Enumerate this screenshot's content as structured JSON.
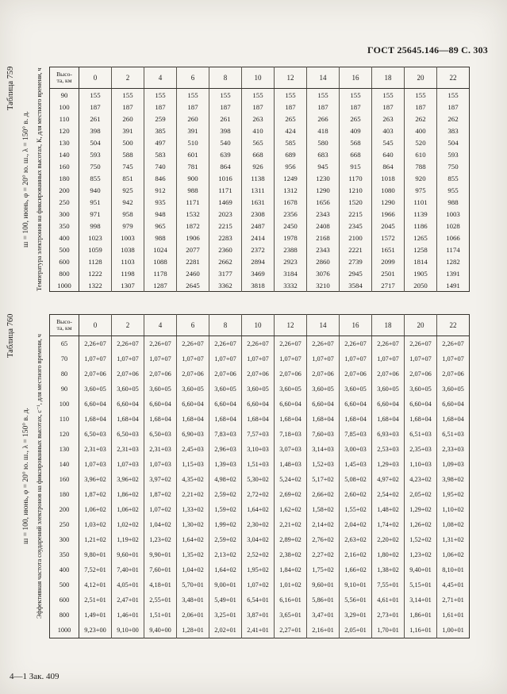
{
  "page": {
    "header_right": "ГОСТ 25645.146—89 С. 303",
    "footer_left": "4—1 Зак. 409"
  },
  "tables": [
    {
      "caption": "Таблица 759",
      "condition": "ш = 100, июнь, φ = 20° ю. ш., λ = 150° в. д.",
      "title": "Температура электронов на фиксированных высотах, К, для местного времени, ч",
      "height_header_lines": [
        "Высо-",
        "та, км"
      ],
      "hours": [
        "0",
        "2",
        "4",
        "6",
        "8",
        "10",
        "12",
        "14",
        "16",
        "18",
        "20",
        "22"
      ],
      "rows": [
        {
          "height": "90",
          "values": [
            "155",
            "155",
            "155",
            "155",
            "155",
            "155",
            "155",
            "155",
            "155",
            "155",
            "155",
            "155"
          ]
        },
        {
          "height": "100",
          "values": [
            "187",
            "187",
            "187",
            "187",
            "187",
            "187",
            "187",
            "187",
            "187",
            "187",
            "187",
            "187"
          ]
        },
        {
          "height": "110",
          "values": [
            "261",
            "260",
            "259",
            "260",
            "261",
            "263",
            "265",
            "266",
            "265",
            "263",
            "262",
            "262"
          ]
        },
        {
          "height": "120",
          "values": [
            "398",
            "391",
            "385",
            "391",
            "398",
            "410",
            "424",
            "418",
            "409",
            "403",
            "400",
            "383"
          ]
        },
        {
          "height": "130",
          "values": [
            "504",
            "500",
            "497",
            "510",
            "540",
            "565",
            "585",
            "580",
            "568",
            "545",
            "520",
            "504"
          ]
        },
        {
          "height": "140",
          "values": [
            "593",
            "588",
            "583",
            "601",
            "639",
            "668",
            "689",
            "683",
            "668",
            "640",
            "610",
            "593"
          ]
        },
        {
          "height": "160",
          "values": [
            "750",
            "745",
            "740",
            "781",
            "864",
            "926",
            "956",
            "945",
            "915",
            "864",
            "788",
            "750"
          ]
        },
        {
          "height": "180",
          "values": [
            "855",
            "851",
            "846",
            "900",
            "1016",
            "1138",
            "1249",
            "1230",
            "1170",
            "1018",
            "920",
            "855"
          ]
        },
        {
          "height": "200",
          "values": [
            "940",
            "925",
            "912",
            "988",
            "1171",
            "1311",
            "1312",
            "1290",
            "1210",
            "1080",
            "975",
            "955"
          ]
        },
        {
          "height": "250",
          "values": [
            "951",
            "942",
            "935",
            "1171",
            "1469",
            "1631",
            "1678",
            "1656",
            "1520",
            "1290",
            "1101",
            "988"
          ]
        },
        {
          "height": "300",
          "values": [
            "971",
            "958",
            "948",
            "1532",
            "2023",
            "2308",
            "2356",
            "2343",
            "2215",
            "1966",
            "1139",
            "1003"
          ]
        },
        {
          "height": "350",
          "values": [
            "998",
            "979",
            "965",
            "1872",
            "2215",
            "2487",
            "2450",
            "2408",
            "2345",
            "2045",
            "1186",
            "1028"
          ]
        },
        {
          "height": "400",
          "values": [
            "1023",
            "1003",
            "988",
            "1906",
            "2283",
            "2414",
            "1978",
            "2168",
            "2100",
            "1572",
            "1265",
            "1066"
          ]
        },
        {
          "height": "500",
          "values": [
            "1059",
            "1038",
            "1024",
            "2077",
            "2360",
            "2372",
            "2388",
            "2343",
            "2221",
            "1651",
            "1258",
            "1174"
          ]
        },
        {
          "height": "600",
          "values": [
            "1128",
            "1103",
            "1088",
            "2281",
            "2662",
            "2894",
            "2923",
            "2860",
            "2739",
            "2099",
            "1814",
            "1282"
          ]
        },
        {
          "height": "800",
          "values": [
            "1222",
            "1198",
            "1178",
            "2460",
            "3177",
            "3469",
            "3184",
            "3076",
            "2945",
            "2501",
            "1905",
            "1391"
          ]
        },
        {
          "height": "1000",
          "values": [
            "1322",
            "1307",
            "1287",
            "2645",
            "3362",
            "3818",
            "3332",
            "3210",
            "3584",
            "2717",
            "2050",
            "1491"
          ]
        }
      ]
    },
    {
      "caption": "Таблица 760",
      "condition": "ш = 100, июнь, φ = 20° ю. ш., λ = 150° в. д.",
      "title": "Эффективная частота соударений электронов на фиксированных высотах, с⁻¹, для местного времени, ч",
      "height_header_lines": [
        "Высо-",
        "та, км"
      ],
      "hours": [
        "0",
        "2",
        "4",
        "6",
        "8",
        "10",
        "12",
        "14",
        "16",
        "18",
        "20",
        "22"
      ],
      "rows": [
        {
          "height": "65",
          "values": [
            "2,26+07",
            "2,26+07",
            "2,26+07",
            "2,26+07",
            "2,26+07",
            "2,26+07",
            "2,26+07",
            "2,26+07",
            "2,26+07",
            "2,26+07",
            "2,26+07",
            "2,26+07"
          ]
        },
        {
          "height": "70",
          "values": [
            "1,07+07",
            "1,07+07",
            "1,07+07",
            "1,07+07",
            "1,07+07",
            "1,07+07",
            "1,07+07",
            "1,07+07",
            "1,07+07",
            "1,07+07",
            "1,07+07",
            "1,07+07"
          ]
        },
        {
          "height": "80",
          "values": [
            "2,07+06",
            "2,07+06",
            "2,07+06",
            "2,07+06",
            "2,07+06",
            "2,07+06",
            "2,07+06",
            "2,07+06",
            "2,07+06",
            "2,07+06",
            "2,07+06",
            "2,07+06"
          ]
        },
        {
          "height": "90",
          "values": [
            "3,60+05",
            "3,60+05",
            "3,60+05",
            "3,60+05",
            "3,60+05",
            "3,60+05",
            "3,60+05",
            "3,60+05",
            "3,60+05",
            "3,60+05",
            "3,60+05",
            "3,60+05"
          ]
        },
        {
          "height": "100",
          "values": [
            "6,60+04",
            "6,60+04",
            "6,60+04",
            "6,60+04",
            "6,60+04",
            "6,60+04",
            "6,60+04",
            "6,60+04",
            "6,60+04",
            "6,60+04",
            "6,60+04",
            "6,60+04"
          ]
        },
        {
          "height": "110",
          "values": [
            "1,68+04",
            "1,68+04",
            "1,68+04",
            "1,68+04",
            "1,68+04",
            "1,68+04",
            "1,68+04",
            "1,68+04",
            "1,68+04",
            "1,68+04",
            "1,68+04",
            "1,68+04"
          ]
        },
        {
          "height": "120",
          "values": [
            "6,50+03",
            "6,50+03",
            "6,50+03",
            "6,90+03",
            "7,83+03",
            "7,57+03",
            "7,18+03",
            "7,60+03",
            "7,85+03",
            "6,93+03",
            "6,51+03",
            "6,51+03"
          ]
        },
        {
          "height": "130",
          "values": [
            "2,31+03",
            "2,31+03",
            "2,31+03",
            "2,45+03",
            "2,96+03",
            "3,10+03",
            "3,07+03",
            "3,14+03",
            "3,00+03",
            "2,53+03",
            "2,35+03",
            "2,33+03"
          ]
        },
        {
          "height": "140",
          "values": [
            "1,07+03",
            "1,07+03",
            "1,07+03",
            "1,15+03",
            "1,39+03",
            "1,51+03",
            "1,48+03",
            "1,52+03",
            "1,45+03",
            "1,29+03",
            "1,10+03",
            "1,09+03"
          ]
        },
        {
          "height": "160",
          "values": [
            "3,96+02",
            "3,96+02",
            "3,97+02",
            "4,35+02",
            "4,98+02",
            "5,30+02",
            "5,24+02",
            "5,17+02",
            "5,08+02",
            "4,97+02",
            "4,23+02",
            "3,98+02"
          ]
        },
        {
          "height": "180",
          "values": [
            "1,87+02",
            "1,86+02",
            "1,87+02",
            "2,21+02",
            "2,59+02",
            "2,72+02",
            "2,69+02",
            "2,66+02",
            "2,60+02",
            "2,54+02",
            "2,05+02",
            "1,95+02"
          ]
        },
        {
          "height": "200",
          "values": [
            "1,06+02",
            "1,06+02",
            "1,07+02",
            "1,33+02",
            "1,59+02",
            "1,64+02",
            "1,62+02",
            "1,58+02",
            "1,55+02",
            "1,48+02",
            "1,29+02",
            "1,10+02"
          ]
        },
        {
          "height": "250",
          "values": [
            "1,03+02",
            "1,02+02",
            "1,04+02",
            "1,30+02",
            "1,99+02",
            "2,30+02",
            "2,21+02",
            "2,14+02",
            "2,04+02",
            "1,74+02",
            "1,26+02",
            "1,08+02"
          ]
        },
        {
          "height": "300",
          "values": [
            "1,21+02",
            "1,19+02",
            "1,23+02",
            "1,64+02",
            "2,59+02",
            "3,04+02",
            "2,89+02",
            "2,76+02",
            "2,63+02",
            "2,20+02",
            "1,52+02",
            "1,31+02"
          ]
        },
        {
          "height": "350",
          "values": [
            "9,80+01",
            "9,60+01",
            "9,90+01",
            "1,35+02",
            "2,13+02",
            "2,52+02",
            "2,38+02",
            "2,27+02",
            "2,16+02",
            "1,80+02",
            "1,23+02",
            "1,06+02"
          ]
        },
        {
          "height": "400",
          "values": [
            "7,52+01",
            "7,40+01",
            "7,60+01",
            "1,04+02",
            "1,64+02",
            "1,95+02",
            "1,84+02",
            "1,75+02",
            "1,66+02",
            "1,38+02",
            "9,40+01",
            "8,10+01"
          ]
        },
        {
          "height": "500",
          "values": [
            "4,12+01",
            "4,05+01",
            "4,18+01",
            "5,70+01",
            "9,00+01",
            "1,07+02",
            "1,01+02",
            "9,60+01",
            "9,10+01",
            "7,55+01",
            "5,15+01",
            "4,45+01"
          ]
        },
        {
          "height": "600",
          "values": [
            "2,51+01",
            "2,47+01",
            "2,55+01",
            "3,48+01",
            "5,49+01",
            "6,54+01",
            "6,16+01",
            "5,86+01",
            "5,56+01",
            "4,61+01",
            "3,14+01",
            "2,71+01"
          ]
        },
        {
          "height": "800",
          "values": [
            "1,49+01",
            "1,46+01",
            "1,51+01",
            "2,06+01",
            "3,25+01",
            "3,87+01",
            "3,65+01",
            "3,47+01",
            "3,29+01",
            "2,73+01",
            "1,86+01",
            "1,61+01"
          ]
        },
        {
          "height": "1000",
          "values": [
            "9,23+00",
            "9,10+00",
            "9,40+00",
            "1,28+01",
            "2,02+01",
            "2,41+01",
            "2,27+01",
            "2,16+01",
            "2,05+01",
            "1,70+01",
            "1,16+01",
            "1,00+01"
          ]
        }
      ]
    }
  ]
}
